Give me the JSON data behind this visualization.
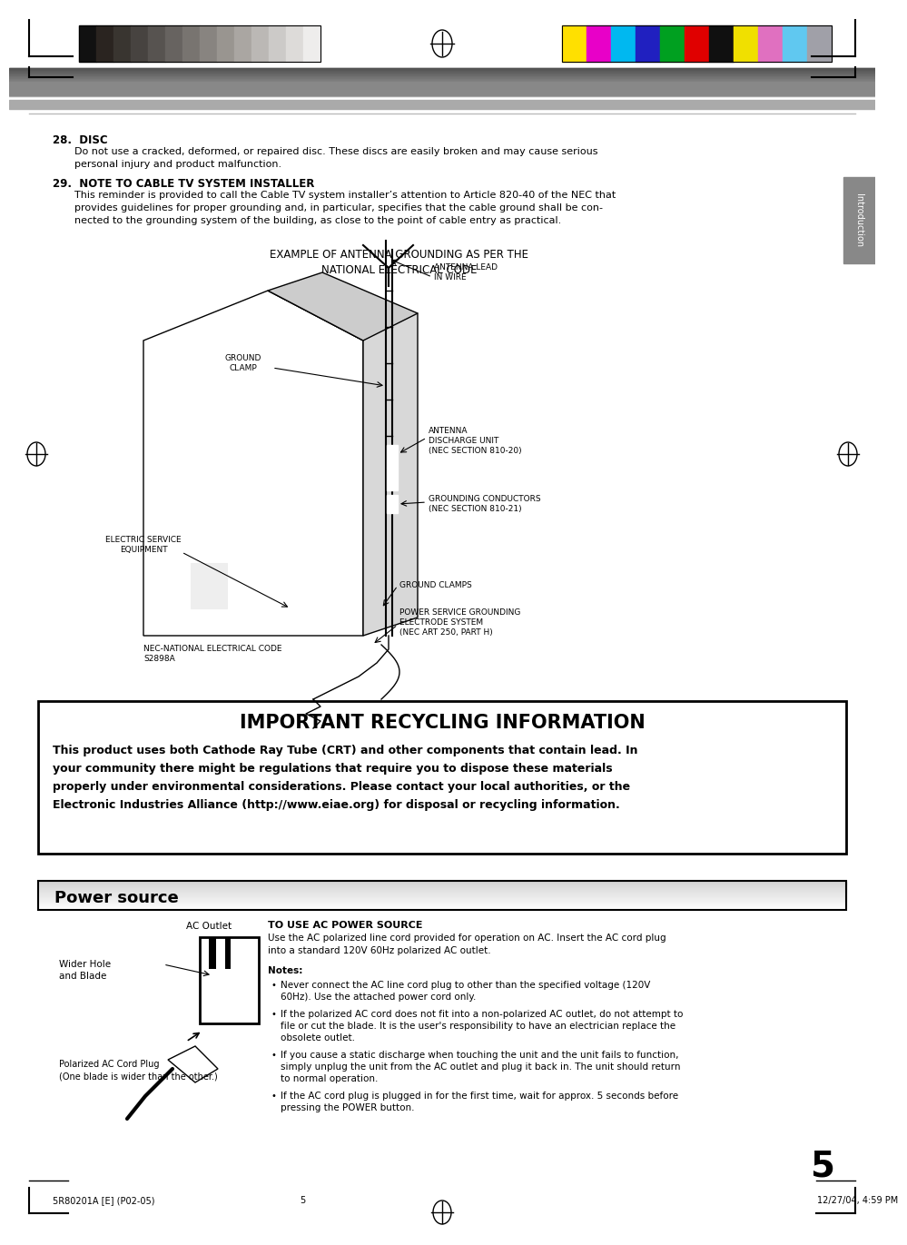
{
  "bg_color": "#ffffff",
  "header_color_bars_left": [
    "#111111",
    "#2a2420",
    "#393530",
    "#474340",
    "#575350",
    "#676360",
    "#787470",
    "#888480",
    "#999590",
    "#aaa6a2",
    "#bbb8b5",
    "#cccac8",
    "#dddbd9",
    "#eeedec"
  ],
  "header_color_bars_right": [
    "#ffe000",
    "#e800c8",
    "#00b8f0",
    "#2020c0",
    "#00a020",
    "#e00000",
    "#101010",
    "#f0e000",
    "#e070c0",
    "#60c8f0",
    "#a0a0a8"
  ],
  "title": "IMPORTANT RECYCLING INFORMATION",
  "recycling_text_line1": "This product uses both Cathode Ray Tube (CRT) and other components that contain lead. In",
  "recycling_text_line2": "your community there might be regulations that require you to dispose these materials",
  "recycling_text_line3": "properly under environmental considerations. Please contact your local authorities, or the",
  "recycling_text_line4": "Electronic Industries Alliance (http://www.eiae.org) for disposal or recycling information.",
  "power_source_title": "Power source",
  "ac_outlet_label": "AC Outlet",
  "wider_hole_label": "Wider Hole\nand Blade",
  "polarized_label": "Polarized AC Cord Plug\n(One blade is wider than the other.)",
  "to_use_ac_title": "TO USE AC POWER SOURCE",
  "to_use_ac_text_line1": "Use the AC polarized line cord provided for operation on AC. Insert the AC cord plug",
  "to_use_ac_text_line2": "into a standard 120V 60Hz polarized AC outlet.",
  "notes_title": "Notes:",
  "notes_bullets": [
    "Never connect the AC line cord plug to other than the specified voltage (120V\n 60Hz). Use the attached power cord only.",
    "If the polarized AC cord does not fit into a non-polarized AC outlet, do not attempt to\n file or cut the blade. It is the user's responsibility to have an electrician replace the\n obsolete outlet.",
    "If you cause a static discharge when touching the unit and the unit fails to function,\n simply unplug the unit from the AC outlet and plug it back in. The unit should return\n to normal operation.",
    "If the AC cord plug is plugged in for the first time, wait for approx. 5 seconds before\n pressing the POWER button."
  ],
  "item28_title": "28.  DISC",
  "item28_text": "Do not use a cracked, deformed, or repaired disc. These discs are easily broken and may cause serious\npersonal injury and product malfunction.",
  "item29_title": "29.  NOTE TO CABLE TV SYSTEM INSTALLER",
  "item29_text": "This reminder is provided to call the Cable TV system installer’s attention to Article 820-40 of the NEC that\nprovides guidelines for proper grounding and, in particular, specifies that the cable ground shall be con-\nnected to the grounding system of the building, as close to the point of cable entry as practical.",
  "antenna_diagram_title": "EXAMPLE OF ANTENNA GROUNDING AS PER THE\nNATIONAL ELECTRICAL CODE",
  "lbl_antenna_lead": "ANTENNA LEAD\nIN WIRE",
  "lbl_ground_clamp": "GROUND\nCLAMP",
  "lbl_antenna_discharge": "ANTENNA\nDISCHARGE UNIT\n(NEC SECTION 810-20)",
  "lbl_electric_service": "ELECTRIC SERVICE\nEQUIPMENT",
  "lbl_grounding_conductors": "GROUNDING CONDUCTORS\n(NEC SECTION 810-21)",
  "lbl_ground_clamps": "GROUND CLAMPS",
  "lbl_power_service": "POWER SERVICE GROUNDING\nELECTRODE SYSTEM\n(NEC ART 250, PART H)",
  "lbl_nec_national": "NEC-NATIONAL ELECTRICAL CODE\nS2898A",
  "introduction_tab": "Introduction",
  "page_number": "5",
  "footer_left": "5R80201A [E] (P02-05)",
  "footer_center": "5",
  "footer_right": "12/27/04, 4:59 PM"
}
